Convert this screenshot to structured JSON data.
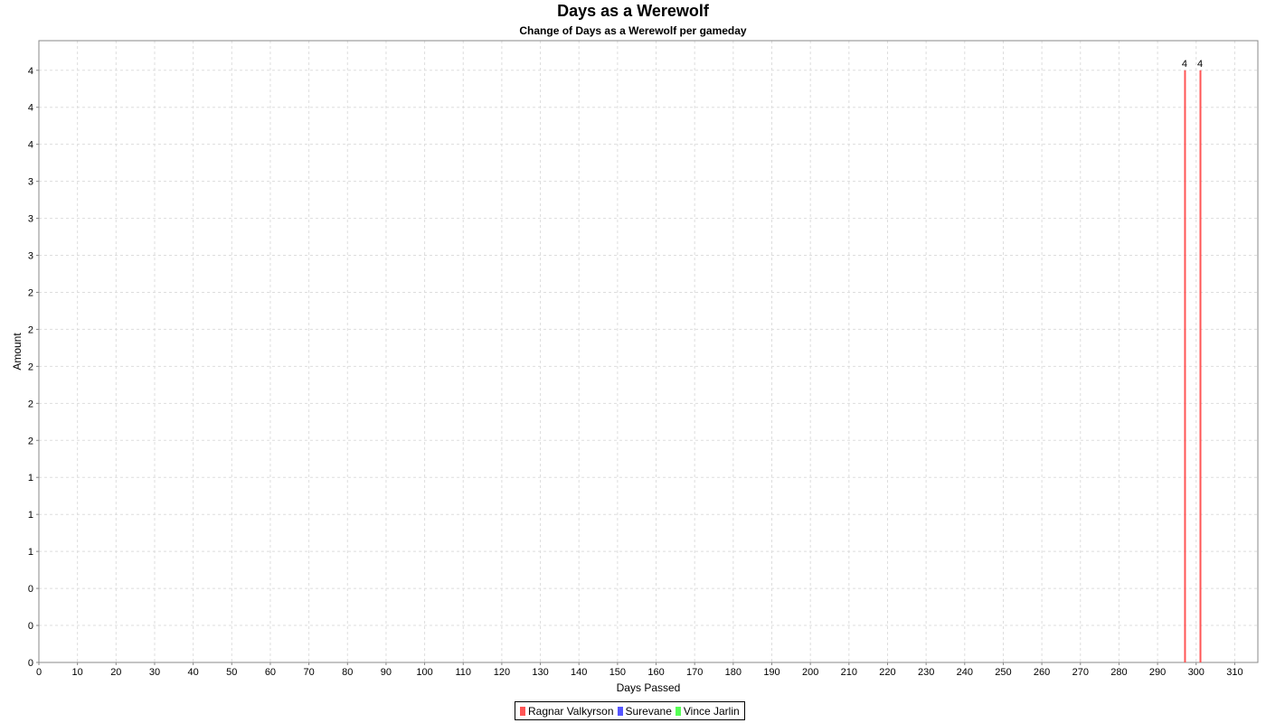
{
  "chart_data": {
    "type": "bar",
    "title": "Days as a Werewolf",
    "subtitle": "Change of Days as a Werewolf per gameday",
    "xlabel": "Days Passed",
    "ylabel": "Amount",
    "xlim": [
      0,
      316
    ],
    "ylim": [
      0,
      4.2
    ],
    "x_ticks": [
      0,
      10,
      20,
      30,
      40,
      50,
      60,
      70,
      80,
      90,
      100,
      110,
      120,
      130,
      140,
      150,
      160,
      170,
      180,
      190,
      200,
      210,
      220,
      230,
      240,
      250,
      260,
      270,
      280,
      290,
      300,
      310
    ],
    "y_ticks": [
      {
        "value": 0,
        "label": "0"
      },
      {
        "value": 0.25,
        "label": "0"
      },
      {
        "value": 0.5,
        "label": "0"
      },
      {
        "value": 0.75,
        "label": "1"
      },
      {
        "value": 1.0,
        "label": "1"
      },
      {
        "value": 1.25,
        "label": "1"
      },
      {
        "value": 1.5,
        "label": "2"
      },
      {
        "value": 1.75,
        "label": "2"
      },
      {
        "value": 2.0,
        "label": "2"
      },
      {
        "value": 2.25,
        "label": "2"
      },
      {
        "value": 2.5,
        "label": "2"
      },
      {
        "value": 2.75,
        "label": "3"
      },
      {
        "value": 3.0,
        "label": "3"
      },
      {
        "value": 3.25,
        "label": "3"
      },
      {
        "value": 3.5,
        "label": "4"
      },
      {
        "value": 3.75,
        "label": "4"
      },
      {
        "value": 4.0,
        "label": "4"
      }
    ],
    "grid": true,
    "legend_position": "bottom",
    "series": [
      {
        "name": "Ragnar Valkyrson",
        "color": "#ff5555",
        "points": [
          {
            "x": 297,
            "y": 4,
            "label": "4"
          },
          {
            "x": 301,
            "y": 4,
            "label": "4"
          }
        ]
      },
      {
        "name": "Surevane",
        "color": "#5555ff",
        "points": []
      },
      {
        "name": "Vince Jarlin",
        "color": "#55ff55",
        "points": []
      }
    ]
  }
}
